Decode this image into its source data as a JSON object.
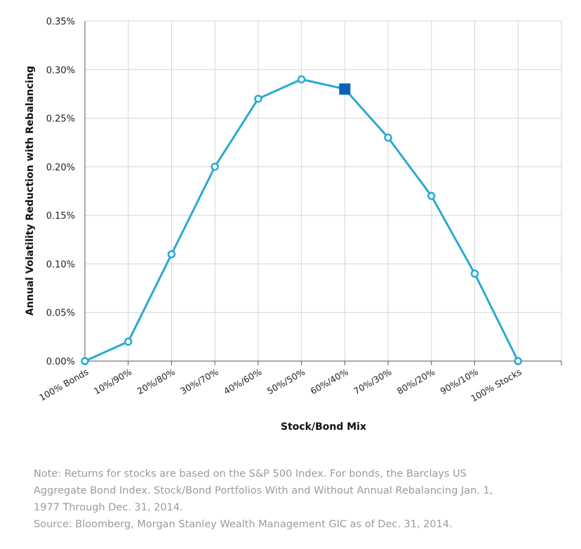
{
  "chart_data": {
    "type": "line",
    "title": "",
    "xlabel": "Stock/Bond Mix",
    "ylabel": "Annual Volatility Reduction with Rebalancing",
    "categories": [
      "100% Bonds",
      "10%/90%",
      "20%/80%",
      "30%/70%",
      "40%/60%",
      "50%/50%",
      "60%/40%",
      "70%/30%",
      "80%/20%",
      "90%/10%",
      "100% Stocks"
    ],
    "series": [
      {
        "values": [
          0.0,
          0.02,
          0.11,
          0.2,
          0.27,
          0.29,
          0.28,
          0.23,
          0.17,
          0.09,
          0.0
        ]
      }
    ],
    "highlight_index": 6,
    "ylim": [
      0,
      0.35
    ],
    "yticks": [
      0,
      0.05,
      0.1,
      0.15,
      0.2,
      0.25,
      0.3,
      0.35
    ],
    "ytick_labels": [
      "0.00%",
      "0.05%",
      "0.10%",
      "0.15%",
      "0.20%",
      "0.25%",
      "0.30%",
      "0.35%"
    ],
    "grid": true,
    "line_color": "#2aa9d2",
    "highlight_color": "#0a63b8",
    "grid_color": "#d4d4d4"
  },
  "notes": {
    "line1": "Note: Returns for stocks are based on the S&P 500 Index. For bonds, the Barclays US",
    "line2": "Aggregate Bond Index. Stock/Bond Portfolios With and Without Annual Rebalancing Jan. 1,",
    "line3": "1977 Through Dec. 31, 2014.",
    "line4": "Source: Bloomberg, Morgan Stanley Wealth Management GIC as of Dec. 31, 2014."
  }
}
